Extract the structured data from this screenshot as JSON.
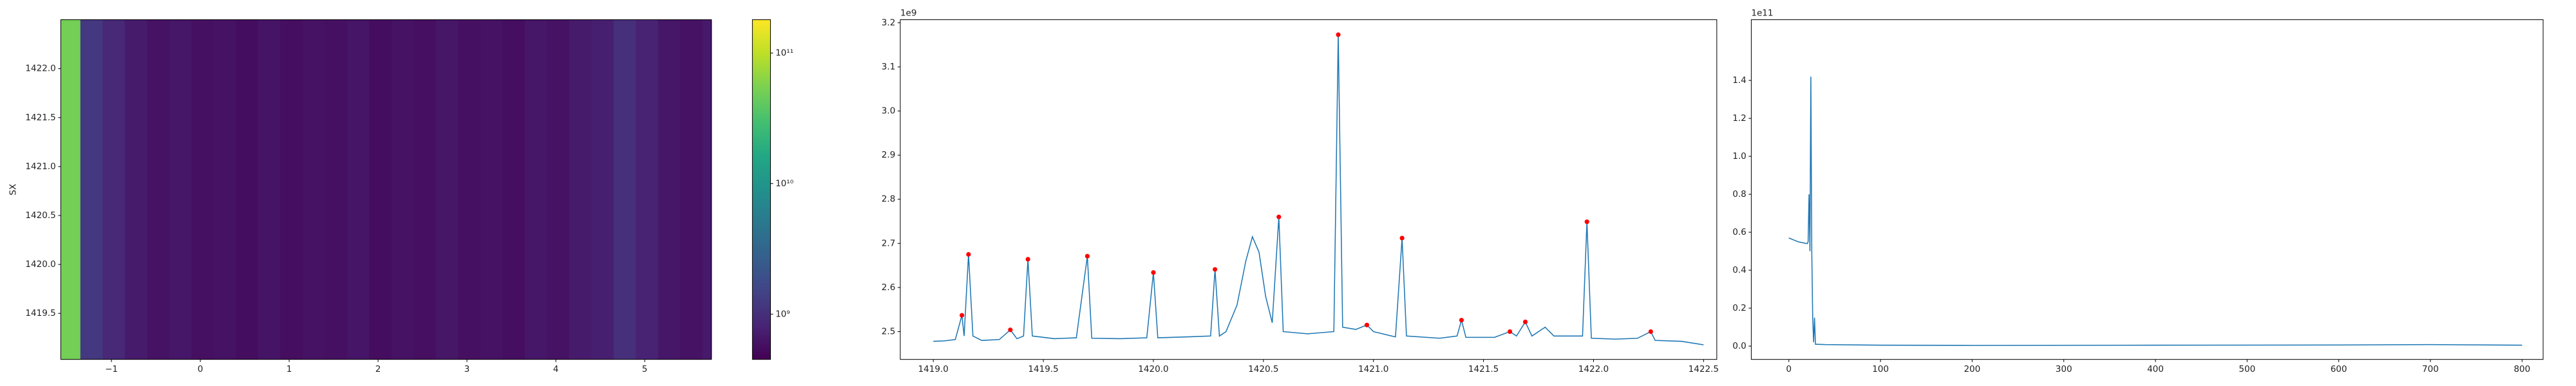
{
  "chart_data": [
    {
      "type": "heatmap",
      "ylabel": "SX",
      "colormap": "viridis",
      "xbins": [
        -1.57,
        -1.35,
        -1.1,
        -0.85,
        -0.6,
        -0.35,
        -0.1,
        0.15,
        0.4,
        0.65,
        0.9,
        1.15,
        1.4,
        1.65,
        1.9,
        2.15,
        2.4,
        2.65,
        2.9,
        3.15,
        3.4,
        3.65,
        3.9,
        4.15,
        4.4,
        4.65,
        4.9,
        5.15,
        5.4,
        5.65,
        5.75
      ],
      "values": [
        50000000000.0,
        1200000000.0,
        900000000.0,
        700000000.0,
        600000000.0,
        650000000.0,
        580000000.0,
        600000000.0,
        550000000.0,
        620000000.0,
        560000000.0,
        600000000.0,
        580000000.0,
        630000000.0,
        550000000.0,
        600000000.0,
        570000000.0,
        640000000.0,
        580000000.0,
        600000000.0,
        560000000.0,
        650000000.0,
        600000000.0,
        700000000.0,
        750000000.0,
        1000000000.0,
        800000000.0,
        650000000.0,
        600000000.0,
        680000000.0
      ],
      "xlim": [
        -1.57,
        5.75
      ],
      "ylim": [
        1419.03,
        1422.5
      ],
      "xticks": [
        {
          "value": -1,
          "label": "−1"
        },
        0,
        1,
        2,
        3,
        4,
        5
      ],
      "yticks": [
        1419.5,
        {
          "value": 1420,
          "label": "1420.0"
        },
        1420.5,
        {
          "value": 1421,
          "label": "1421.0"
        },
        1421.5,
        {
          "value": 1422,
          "label": "1422.0"
        }
      ],
      "colorbar": {
        "scale": "log",
        "lim": [
          450000000.0,
          180000000000.0
        ],
        "ticks": [
          {
            "value": 1000000000.0,
            "label": "10⁹"
          },
          {
            "value": 10000000000.0,
            "label": "10¹⁰"
          },
          {
            "value": 100000000000.0,
            "label": "10¹¹"
          }
        ]
      }
    },
    {
      "type": "line",
      "color": "#1f77b4",
      "offset_label": "1e9",
      "x": [
        1419.0,
        1419.05,
        1419.1,
        1419.13,
        1419.14,
        1419.16,
        1419.18,
        1419.22,
        1419.3,
        1419.35,
        1419.38,
        1419.41,
        1419.43,
        1419.45,
        1419.55,
        1419.65,
        1419.7,
        1419.72,
        1419.85,
        1419.97,
        1420.0,
        1420.02,
        1420.15,
        1420.26,
        1420.28,
        1420.3,
        1420.33,
        1420.38,
        1420.42,
        1420.45,
        1420.48,
        1420.51,
        1420.54,
        1420.57,
        1420.59,
        1420.7,
        1420.82,
        1420.84,
        1420.86,
        1420.92,
        1420.97,
        1421.0,
        1421.1,
        1421.13,
        1421.15,
        1421.3,
        1421.38,
        1421.4,
        1421.42,
        1421.55,
        1421.62,
        1421.65,
        1421.69,
        1421.72,
        1421.78,
        1421.82,
        1421.95,
        1421.97,
        1421.99,
        1422.1,
        1422.2,
        1422.26,
        1422.28,
        1422.4,
        1422.5
      ],
      "values": [
        2.478,
        2.479,
        2.482,
        2.537,
        2.49,
        2.675,
        2.49,
        2.48,
        2.482,
        2.504,
        2.484,
        2.49,
        2.664,
        2.49,
        2.484,
        2.486,
        2.671,
        2.485,
        2.484,
        2.486,
        2.634,
        2.486,
        2.488,
        2.49,
        2.641,
        2.49,
        2.5,
        2.56,
        2.66,
        2.715,
        2.68,
        2.58,
        2.52,
        2.76,
        2.5,
        2.495,
        2.5,
        3.173,
        2.51,
        2.505,
        2.515,
        2.5,
        2.488,
        2.712,
        2.49,
        2.485,
        2.49,
        2.526,
        2.487,
        2.487,
        2.5,
        2.49,
        2.522,
        2.49,
        2.51,
        2.49,
        2.49,
        2.749,
        2.485,
        2.483,
        2.485,
        2.5,
        2.48,
        2.478,
        2.47
      ],
      "markers": {
        "color": "red",
        "x": [
          1419.13,
          1419.16,
          1419.35,
          1419.43,
          1419.7,
          1420.0,
          1420.28,
          1420.57,
          1420.84,
          1420.97,
          1421.13,
          1421.4,
          1421.62,
          1421.69,
          1421.97,
          1422.26
        ],
        "values": [
          2.537,
          2.675,
          2.504,
          2.664,
          2.671,
          2.634,
          2.641,
          2.76,
          3.173,
          2.515,
          2.712,
          2.526,
          2.5,
          2.522,
          2.749,
          2.5
        ]
      },
      "xlim": [
        1418.85,
        1422.56
      ],
      "ylim": [
        2.437,
        3.207
      ],
      "xticks": [
        {
          "value": 1419,
          "label": "1419.0"
        },
        1419.5,
        {
          "value": 1420,
          "label": "1420.0"
        },
        1420.5,
        {
          "value": 1421,
          "label": "1421.0"
        },
        1421.5,
        {
          "value": 1422,
          "label": "1422.0"
        },
        1422.5
      ],
      "yticks": [
        2.5,
        2.6,
        2.7,
        2.8,
        2.9,
        {
          "value": 3,
          "label": "3.0"
        },
        3.1,
        3.2
      ]
    },
    {
      "type": "line",
      "color": "#1f77b4",
      "offset_label": "1e11",
      "x": [
        0,
        5,
        10,
        20,
        21,
        22,
        23,
        24,
        25,
        26,
        27,
        28,
        29,
        40,
        100,
        200,
        400,
        600,
        700,
        800
      ],
      "values": [
        0.57,
        0.56,
        0.55,
        0.54,
        0.55,
        0.8,
        0.5,
        1.42,
        0.5,
        0.15,
        0.02,
        0.15,
        0.01,
        0.008,
        0.005,
        0.004,
        0.005,
        0.006,
        0.008,
        0.005
      ],
      "xlim": [
        -41,
        823
      ],
      "ylim": [
        -0.07,
        1.72
      ],
      "xticks": [
        0,
        100,
        200,
        300,
        400,
        500,
        600,
        700,
        800
      ],
      "yticks": [
        {
          "value": 0,
          "label": "0.0"
        },
        0.2,
        0.4,
        0.6,
        0.8,
        {
          "value": 1,
          "label": "1.0"
        },
        1.2,
        1.4
      ]
    }
  ]
}
